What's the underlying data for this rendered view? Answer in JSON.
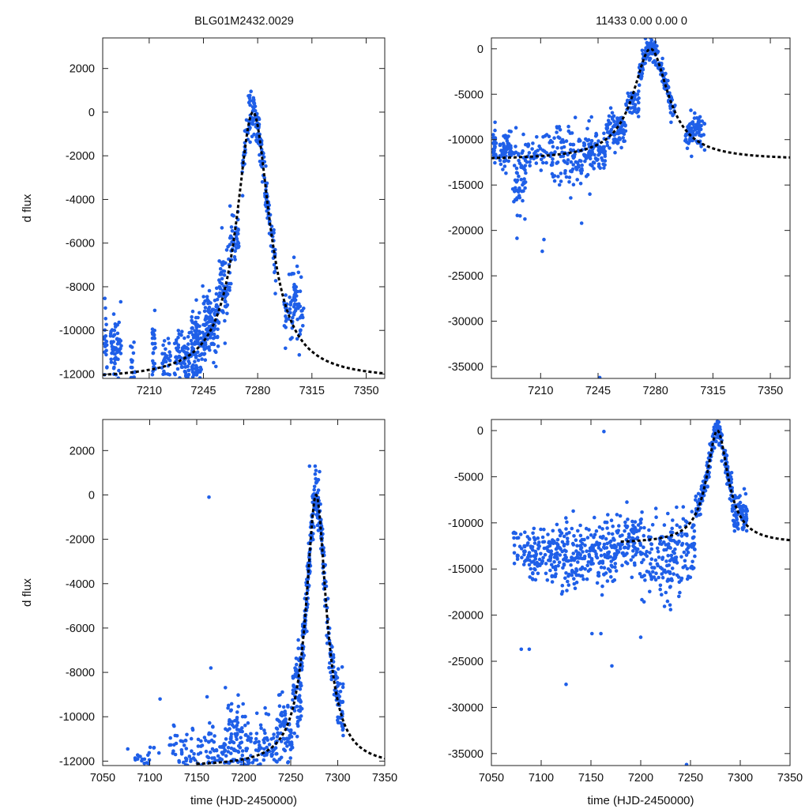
{
  "figure": {
    "title_left": "BLG01M2432.0029",
    "title_right": "11433  0.00  0.00  0"
  },
  "colors": {
    "points": "#1f5fe8",
    "model": "#000000",
    "axes": "#222222"
  },
  "chart_data": [
    {
      "type": "scatter",
      "panel": "top-left",
      "xlabel": "",
      "ylabel": "d flux",
      "xlim": [
        7180,
        7362
      ],
      "ylim": [
        -12200,
        3400
      ],
      "xticks": [
        7210,
        7245,
        7280,
        7315,
        7350
      ],
      "yticks": [
        -12000,
        -10000,
        -8000,
        -6000,
        -4000,
        -2000,
        0,
        2000
      ],
      "series": [
        {
          "name": "data",
          "clusters": [
            {
              "x0": 7181,
              "x1": 7183,
              "y": -10500,
              "sd": 1000,
              "n": 20
            },
            {
              "x0": 7185,
              "x1": 7192,
              "y": -11000,
              "sd": 800,
              "n": 60
            },
            {
              "x0": 7198,
              "x1": 7201,
              "y": -11500,
              "sd": 600,
              "n": 15
            },
            {
              "x0": 7212,
              "x1": 7214,
              "y": -10900,
              "sd": 700,
              "n": 25
            },
            {
              "x0": 7218,
              "x1": 7224,
              "y": -11300,
              "sd": 600,
              "n": 30
            },
            {
              "x0": 7226,
              "x1": 7236,
              "y": -11300,
              "sd": 700,
              "n": 70
            },
            {
              "x0": 7237,
              "x1": 7245,
              "y": -10700,
              "sd": 900,
              "n": 90
            },
            {
              "x0": 7245,
              "x1": 7255,
              "y": -9700,
              "sd": 800,
              "n": 120
            },
            {
              "x0": 7255,
              "x1": 7262,
              "y": -8000,
              "sd": 900,
              "n": 60
            },
            {
              "x0": 7262,
              "x1": 7268,
              "y": -5800,
              "sd": 700,
              "n": 40
            },
            {
              "x0": 7270,
              "x1": 7284,
              "y": "model",
              "sd": 500,
              "n": 120
            },
            {
              "x0": 7284,
              "x1": 7292,
              "y": "model",
              "sd": 600,
              "n": 60
            },
            {
              "x0": 7297,
              "x1": 7310,
              "y": -8900,
              "sd": 900,
              "n": 80
            }
          ]
        },
        {
          "name": "model",
          "style": "dashed",
          "x0": 7180,
          "x1": 7362,
          "base": -12250,
          "peak": 0,
          "t0": 7277,
          "tau": 13
        }
      ]
    },
    {
      "type": "scatter",
      "panel": "top-right",
      "xlabel": "",
      "ylabel": "",
      "xlim": [
        7180,
        7362
      ],
      "ylim": [
        -36300,
        1200
      ],
      "xticks": [
        7210,
        7245,
        7280,
        7315,
        7350
      ],
      "yticks": [
        -35000,
        -30000,
        -25000,
        -20000,
        -15000,
        -10000,
        -5000,
        0
      ],
      "series": [
        {
          "name": "data",
          "clusters": [
            {
              "x0": 7181,
              "x1": 7183,
              "y": -10900,
              "sd": 1100,
              "n": 30
            },
            {
              "x0": 7185,
              "x1": 7192,
              "y": -11000,
              "sd": 900,
              "n": 60
            },
            {
              "x0": 7193,
              "x1": 7201,
              "y": -14000,
              "sd": 2500,
              "n": 60
            },
            {
              "x0": 7201,
              "x1": 7216,
              "y": -11500,
              "sd": 1200,
              "n": 40
            },
            {
              "x0": 7216,
              "x1": 7236,
              "y": -12000,
              "sd": 2000,
              "n": 100
            },
            {
              "x0": 7236,
              "x1": 7250,
              "y": -11000,
              "sd": 1300,
              "n": 90
            },
            {
              "x0": 7250,
              "x1": 7262,
              "y": -9000,
              "sd": 1000,
              "n": 80
            },
            {
              "x0": 7262,
              "x1": 7270,
              "y": -6000,
              "sd": 800,
              "n": 40
            },
            {
              "x0": 7270,
              "x1": 7292,
              "y": "model",
              "sd": 700,
              "n": 160
            },
            {
              "x0": 7298,
              "x1": 7310,
              "y": -9000,
              "sd": 900,
              "n": 80
            }
          ],
          "outliers": [
            [
              7246,
              -36200
            ],
            [
              7211,
              -22300
            ],
            [
              7212,
              -21000
            ],
            [
              7235,
              -19200
            ],
            [
              7240,
              -16000
            ]
          ]
        },
        {
          "name": "model",
          "style": "dashed",
          "x0": 7180,
          "x1": 7362,
          "base": -12250,
          "peak": 0,
          "t0": 7277,
          "tau": 13
        }
      ]
    },
    {
      "type": "scatter",
      "panel": "bottom-left",
      "xlabel": "time (HJD-2450000)",
      "ylabel": "d flux",
      "xlim": [
        7050,
        7350
      ],
      "ylim": [
        -12200,
        3400
      ],
      "xticks": [
        7050,
        7100,
        7150,
        7200,
        7250,
        7300,
        7350
      ],
      "yticks": [
        -12000,
        -10000,
        -8000,
        -6000,
        -4000,
        -2000,
        0,
        2000
      ],
      "series": [
        {
          "name": "data",
          "clusters": [
            {
              "x0": 7075,
              "x1": 7110,
              "y": -11800,
              "sd": 300,
              "n": 20
            },
            {
              "x0": 7120,
              "x1": 7180,
              "y": -11500,
              "sd": 600,
              "n": 90
            },
            {
              "x0": 7180,
              "x1": 7200,
              "y": -11000,
              "sd": 900,
              "n": 80
            },
            {
              "x0": 7200,
              "x1": 7235,
              "y": -11200,
              "sd": 700,
              "n": 80
            },
            {
              "x0": 7235,
              "x1": 7252,
              "y": -10600,
              "sd": 800,
              "n": 70
            },
            {
              "x0": 7252,
              "x1": 7262,
              "y": -8700,
              "sd": 1000,
              "n": 70
            },
            {
              "x0": 7262,
              "x1": 7287,
              "y": "model",
              "sd": 600,
              "n": 200
            },
            {
              "x0": 7287,
              "x1": 7306,
              "y": "model",
              "sd": 700,
              "n": 90
            }
          ],
          "outliers": [
            [
              7163,
              -100
            ],
            [
              7165,
              -7800
            ],
            [
              7111,
              -9200
            ],
            [
              7161,
              -9100
            ],
            [
              7270,
              1300
            ],
            [
              7276,
              1300
            ],
            [
              7278,
              600
            ]
          ]
        },
        {
          "name": "model",
          "style": "dashed",
          "x0": 7150,
          "x1": 7350,
          "base": -12250,
          "peak": 0,
          "t0": 7277,
          "tau": 13
        }
      ]
    },
    {
      "type": "scatter",
      "panel": "bottom-right",
      "xlabel": "time (HJD-2450000)",
      "ylabel": "",
      "xlim": [
        7050,
        7350
      ],
      "ylim": [
        -36300,
        1200
      ],
      "xticks": [
        7050,
        7100,
        7150,
        7200,
        7250,
        7300,
        7350
      ],
      "yticks": [
        -35000,
        -30000,
        -25000,
        -20000,
        -15000,
        -10000,
        -5000,
        0
      ],
      "series": [
        {
          "name": "data",
          "clusters": [
            {
              "x0": 7072,
              "x1": 7120,
              "y": -13500,
              "sd": 1400,
              "n": 150
            },
            {
              "x0": 7120,
              "x1": 7175,
              "y": -13500,
              "sd": 1800,
              "n": 220
            },
            {
              "x0": 7175,
              "x1": 7200,
              "y": -12000,
              "sd": 1300,
              "n": 90
            },
            {
              "x0": 7200,
              "x1": 7230,
              "y": -13500,
              "sd": 2300,
              "n": 100
            },
            {
              "x0": 7230,
              "x1": 7255,
              "y": -13000,
              "sd": 2000,
              "n": 90
            },
            {
              "x0": 7255,
              "x1": 7292,
              "y": "model",
              "sd": 700,
              "n": 200
            },
            {
              "x0": 7292,
              "x1": 7307,
              "y": -9000,
              "sd": 1000,
              "n": 80
            }
          ],
          "outliers": [
            [
              7163,
              -100
            ],
            [
              7125,
              -27500
            ],
            [
              7171,
              -25500
            ],
            [
              7088,
              -23700
            ],
            [
              7080,
              -23700
            ],
            [
              7246,
              -36200
            ],
            [
              7151,
              -22000
            ],
            [
              7160,
              -22000
            ],
            [
              7200,
              -22400
            ],
            [
              7230,
              -19400
            ]
          ]
        },
        {
          "name": "model",
          "style": "dashed",
          "x0": 7180,
          "x1": 7350,
          "base": -12250,
          "peak": 0,
          "t0": 7277,
          "tau": 13
        }
      ]
    }
  ]
}
